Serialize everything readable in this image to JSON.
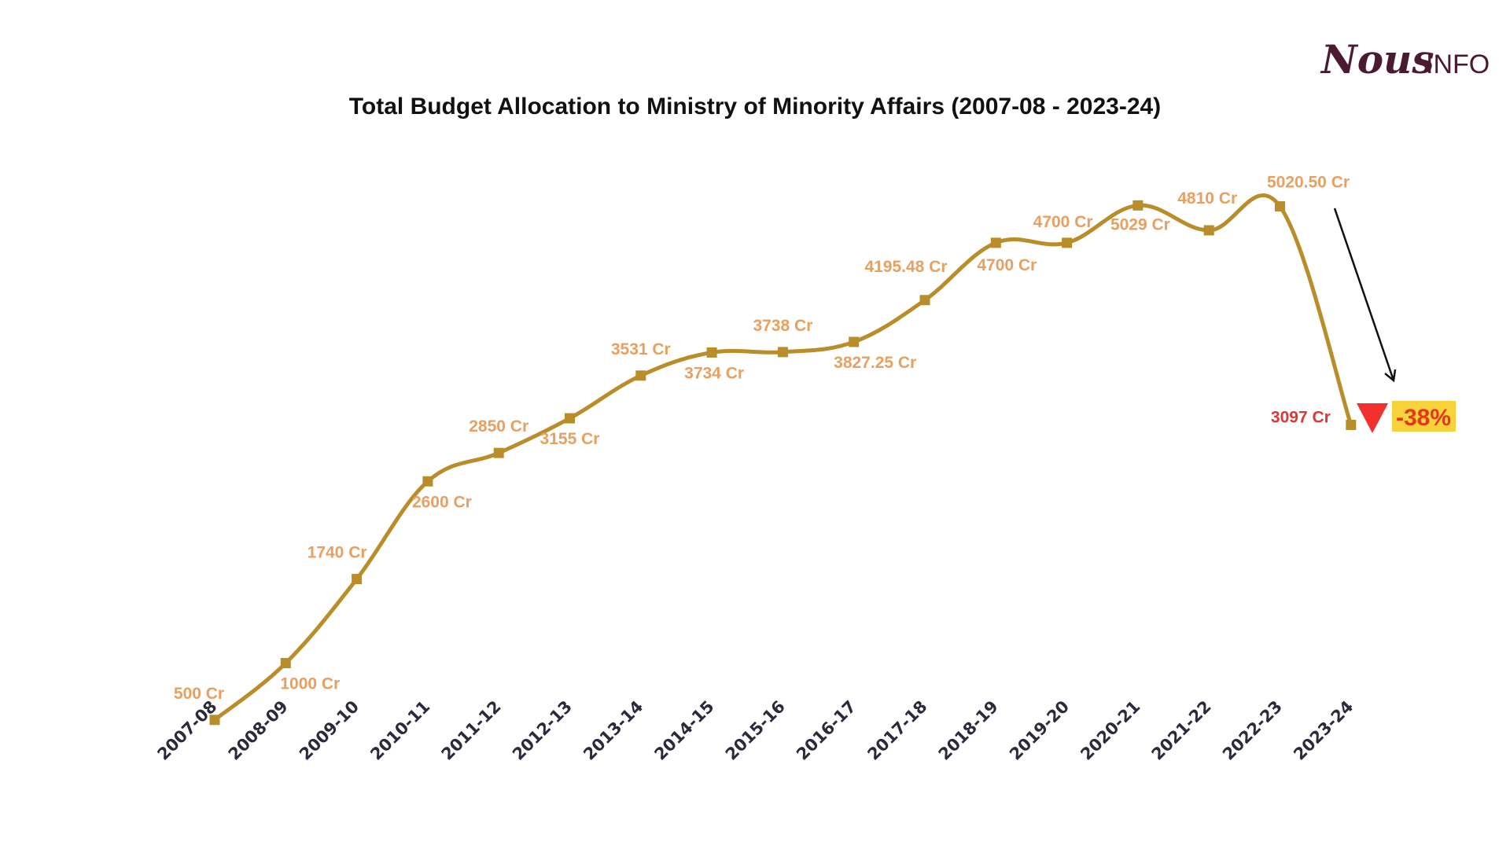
{
  "logo": {
    "main": "Nous",
    "sub": "INFO"
  },
  "colors": {
    "line": "#b88d2a",
    "marker": "#b88d2a",
    "label": "#e8a061",
    "highlight_label": "#d93939",
    "tick": "#2b2a3d",
    "title": "#111111",
    "logo": "#4a1a33",
    "down_triangle": "#f2302e",
    "badge_bg": "#f7d23b",
    "badge_text": "#e8361e",
    "arrow": "#111111"
  },
  "chart_data": {
    "type": "line",
    "title": "Total Budget Allocation to Ministry of Minority Affairs (2007-08 - 2023-24)",
    "xlabel": "",
    "ylabel": "",
    "categories": [
      "2007-08",
      "2008-09",
      "2009-10",
      "2010-11",
      "2011-12",
      "2012-13",
      "2013-14",
      "2014-15",
      "2015-16",
      "2016-17",
      "2017-18",
      "2018-19",
      "2019-20",
      "2020-21",
      "2021-22",
      "2022-23",
      "2023-24"
    ],
    "values": [
      500,
      1000,
      1740,
      2600,
      2850,
      3155,
      3531,
      3734,
      3738,
      3827.25,
      4195.48,
      4700,
      4700,
      5029,
      4810,
      5020.5,
      3097
    ],
    "data_labels": [
      "500 Cr",
      "1000 Cr",
      "1740 Cr",
      "2600 Cr",
      "2850 Cr",
      "3155 Cr",
      "3531 Cr",
      "3734 Cr",
      "3738 Cr",
      "3827.25 Cr",
      "4195.48 Cr",
      "4700 Cr",
      "4700 Cr",
      "5029 Cr",
      "4810 Cr",
      "5020.50 Cr",
      "3097 Cr"
    ],
    "ylim": [
      0,
      5500
    ],
    "grid": false,
    "legend": "none",
    "annotation": {
      "text": "-38%",
      "marker": "down-triangle"
    }
  }
}
